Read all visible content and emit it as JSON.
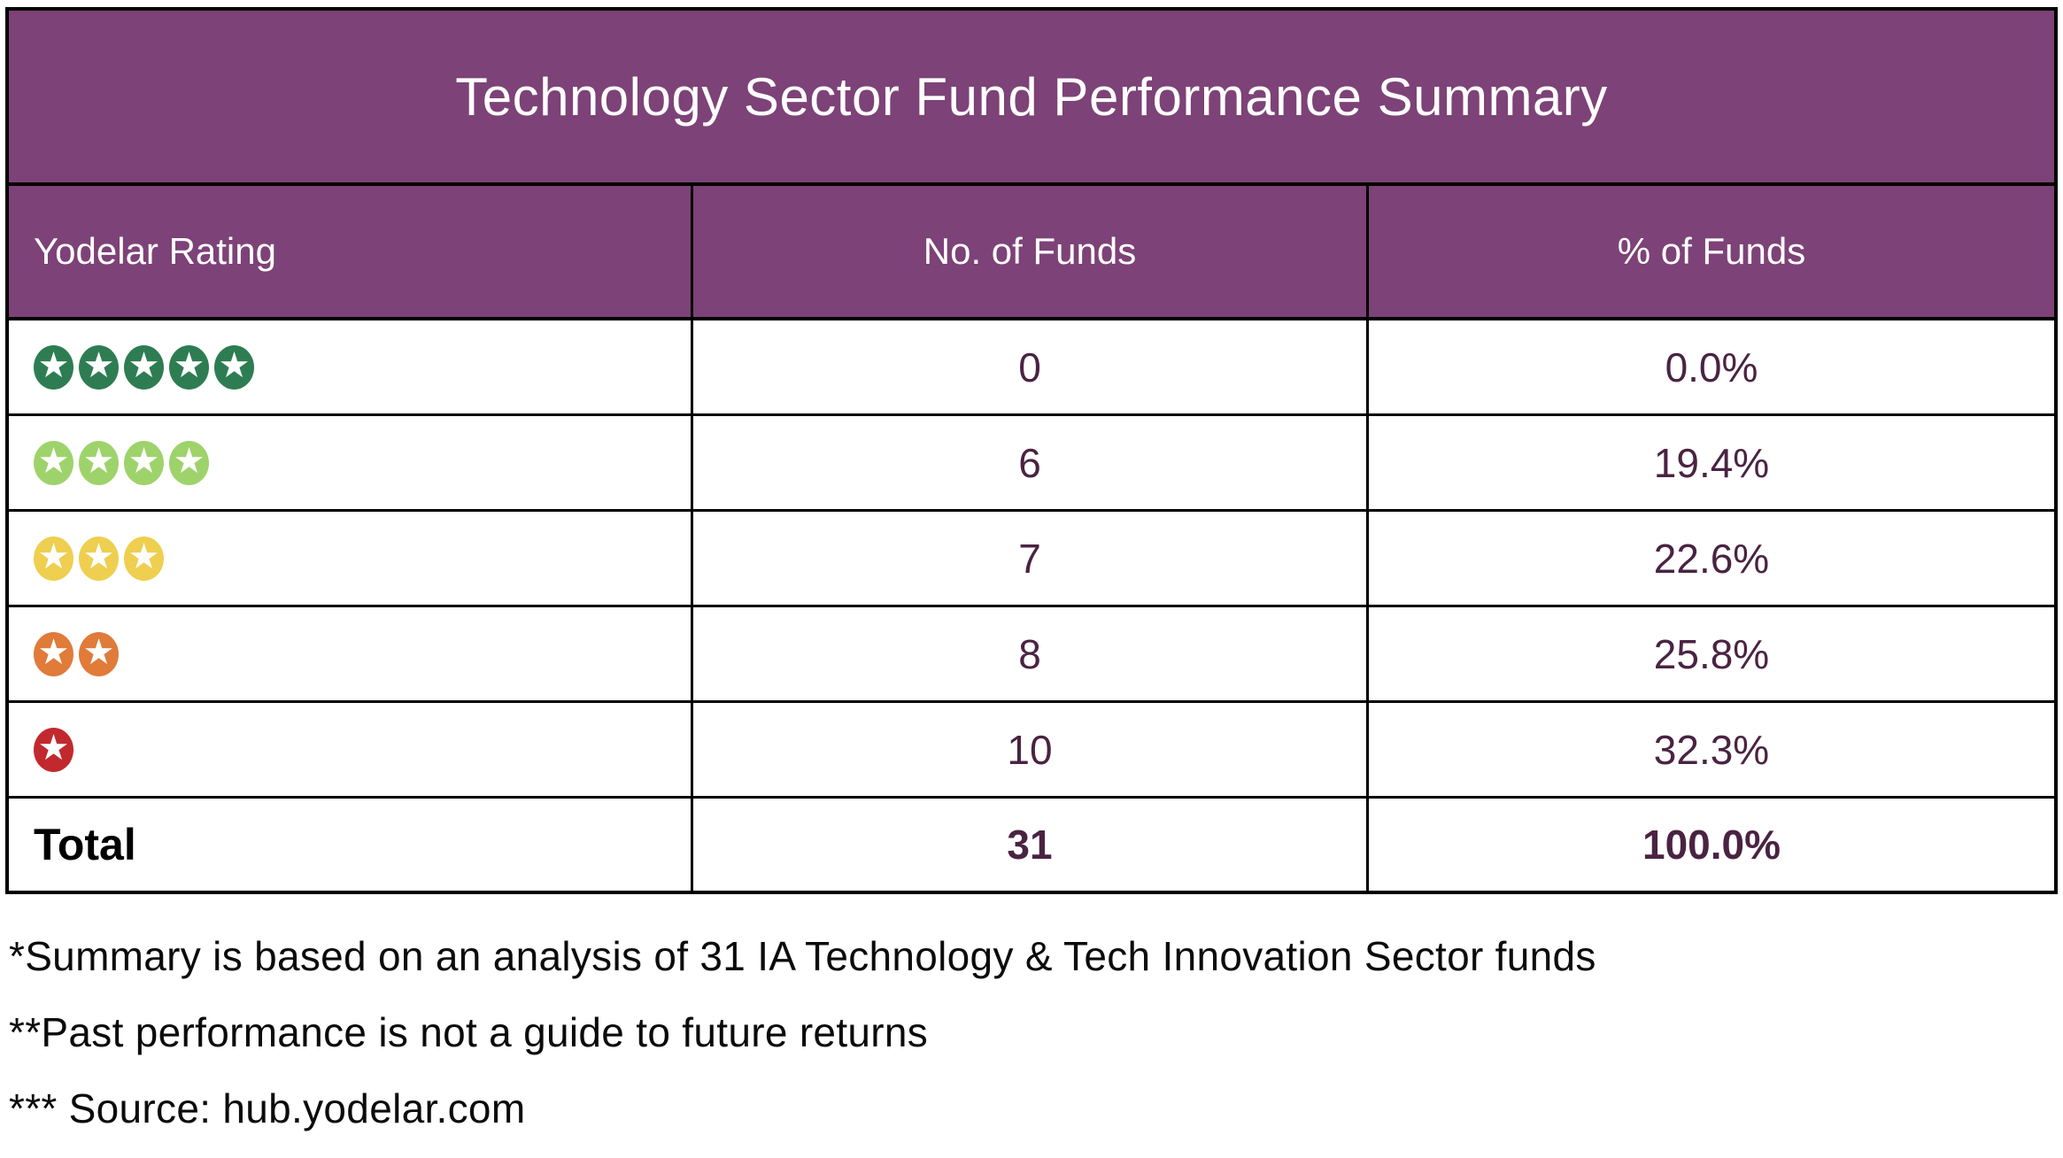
{
  "chart_data": {
    "type": "table",
    "title": "Technology Sector Fund Performance Summary",
    "columns": [
      "Yodelar Rating",
      "No. of Funds",
      "% of Funds"
    ],
    "rows": [
      {
        "rating_stars": 5,
        "no_of_funds": 0,
        "pct_of_funds": "0.0%"
      },
      {
        "rating_stars": 4,
        "no_of_funds": 6,
        "pct_of_funds": "19.4%"
      },
      {
        "rating_stars": 3,
        "no_of_funds": 7,
        "pct_of_funds": "22.6%"
      },
      {
        "rating_stars": 2,
        "no_of_funds": 8,
        "pct_of_funds": "25.8%"
      },
      {
        "rating_stars": 1,
        "no_of_funds": 10,
        "pct_of_funds": "32.3%"
      }
    ],
    "total_row": {
      "label": "Total",
      "no_of_funds": 31,
      "pct_of_funds": "100.0%"
    }
  },
  "title_bar": {
    "title": "Technology Sector Fund Performance Summary"
  },
  "table": {
    "columns": {
      "rating": "Yodelar Rating",
      "funds": "No. of Funds",
      "pct": "% of Funds"
    },
    "rows": [
      {
        "rating_name": "5-star",
        "stars": 5,
        "star_color": "#2E7D52",
        "funds": "0",
        "pct": "0.0%"
      },
      {
        "rating_name": "4-star",
        "stars": 4,
        "star_color": "#9ED36B",
        "funds": "6",
        "pct": "19.4%"
      },
      {
        "rating_name": "3-star",
        "stars": 3,
        "star_color": "#EECF4F",
        "funds": "7",
        "pct": "22.6%"
      },
      {
        "rating_name": "2-star",
        "stars": 2,
        "star_color": "#E07B3A",
        "funds": "8",
        "pct": "25.8%"
      },
      {
        "rating_name": "1-star",
        "stars": 1,
        "star_color": "#C2292E",
        "funds": "10",
        "pct": "32.3%"
      }
    ],
    "total": {
      "label": "Total",
      "funds": "31",
      "pct": "100.0%"
    }
  },
  "footnotes": {
    "line1": "*Summary is based on an analysis of 31 IA Technology & Tech Innovation Sector funds",
    "line2": "**Past performance is not a guide to future returns",
    "line3": "*** Source: hub.yodelar.com"
  },
  "icons": {
    "star_glyph": "★"
  },
  "colors": {
    "header_bg": "#7D4277",
    "border": "#000000",
    "value_text": "#4A2342",
    "star_5": "#2E7D52",
    "star_4": "#9ED36B",
    "star_3": "#EECF4F",
    "star_2": "#E07B3A",
    "star_1": "#C2292E"
  }
}
